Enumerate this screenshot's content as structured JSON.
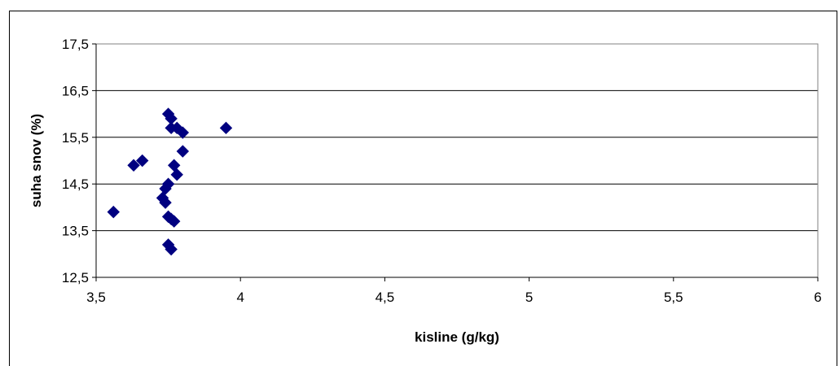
{
  "chart_data": {
    "type": "scatter",
    "title": "",
    "xlabel": "kisline (g/kg)",
    "ylabel": "suha snov (%)",
    "xlim": [
      3.5,
      6
    ],
    "ylim": [
      12.5,
      17.5
    ],
    "x_ticks": [
      "3,5",
      "4",
      "4,5",
      "5",
      "5,5",
      "6"
    ],
    "y_ticks": [
      "12,5",
      "13,5",
      "14,5",
      "15,5",
      "16,5",
      "17,5"
    ],
    "grid": "horizontal",
    "marker": "diamond",
    "colors": {
      "marker": "#000080",
      "grid": "#000000",
      "plot_border": "#808080"
    },
    "points": [
      {
        "x": 3.56,
        "y": 13.9
      },
      {
        "x": 3.63,
        "y": 14.9
      },
      {
        "x": 3.66,
        "y": 15.0
      },
      {
        "x": 3.73,
        "y": 14.2
      },
      {
        "x": 3.74,
        "y": 14.1
      },
      {
        "x": 3.74,
        "y": 14.4
      },
      {
        "x": 3.75,
        "y": 14.5
      },
      {
        "x": 3.75,
        "y": 16.0
      },
      {
        "x": 3.76,
        "y": 15.9
      },
      {
        "x": 3.76,
        "y": 15.7
      },
      {
        "x": 3.78,
        "y": 15.7
      },
      {
        "x": 3.8,
        "y": 15.6
      },
      {
        "x": 3.8,
        "y": 15.2
      },
      {
        "x": 3.77,
        "y": 14.9
      },
      {
        "x": 3.78,
        "y": 14.7
      },
      {
        "x": 3.75,
        "y": 13.8
      },
      {
        "x": 3.76,
        "y": 13.75
      },
      {
        "x": 3.77,
        "y": 13.7
      },
      {
        "x": 3.75,
        "y": 13.2
      },
      {
        "x": 3.76,
        "y": 13.1
      },
      {
        "x": 3.95,
        "y": 15.7
      }
    ]
  }
}
